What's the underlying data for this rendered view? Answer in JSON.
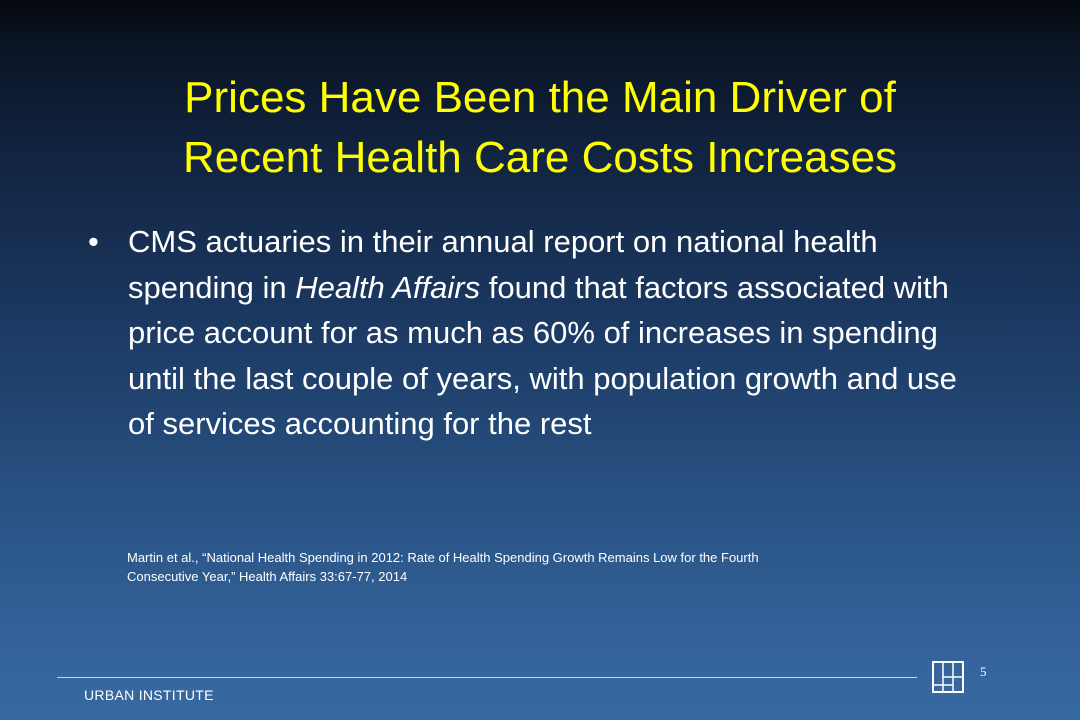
{
  "slide": {
    "title_line1": "Prices Have Been the Main Driver of",
    "title_line2": "Recent Health Care Costs Increases",
    "bullet": {
      "marker": "•",
      "text_before": "CMS actuaries in their annual report on national health spending in ",
      "text_italic": "Health Affairs",
      "text_after": " found that factors associated with price account for as much as 60% of increases in spending until the last couple of years, with population growth and use of services accounting for the rest"
    },
    "citation_line1": "Martin et al., “National Health Spending in 2012: Rate of Health Spending Growth Remains Low for the Fourth",
    "citation_line2": "Consecutive Year,” Health Affairs 33:67-77, 2014"
  },
  "footer": {
    "organization": "URBAN INSTITUTE",
    "page_number": "5",
    "logo_icon": "urban-institute-logo-icon"
  },
  "colors": {
    "title": "#ffff00",
    "text": "#ffffff",
    "background_top": "#05080d",
    "background_bottom": "#376aa1"
  }
}
